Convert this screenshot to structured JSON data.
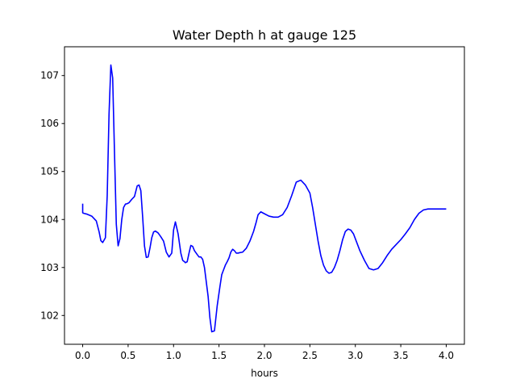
{
  "chart_data": {
    "type": "line",
    "title": "Water Depth h at gauge 125",
    "xlabel": "hours",
    "ylabel": "",
    "xlim": [
      -0.2,
      4.2
    ],
    "ylim": [
      101.4,
      107.6
    ],
    "x_ticks": [
      0.0,
      0.5,
      1.0,
      1.5,
      2.0,
      2.5,
      3.0,
      3.5,
      4.0
    ],
    "x_tick_labels": [
      "0.0",
      "0.5",
      "1.0",
      "1.5",
      "2.0",
      "2.5",
      "3.0",
      "3.5",
      "4.0"
    ],
    "y_ticks": [
      102,
      103,
      104,
      105,
      106,
      107
    ],
    "y_tick_labels": [
      "102",
      "103",
      "104",
      "105",
      "106",
      "107"
    ],
    "grid": false,
    "series": [
      {
        "color": "#0000ff",
        "x": [
          0.0,
          0.0,
          0.01,
          0.05,
          0.1,
          0.15,
          0.18,
          0.2,
          0.22,
          0.25,
          0.27,
          0.29,
          0.31,
          0.33,
          0.35,
          0.37,
          0.39,
          0.41,
          0.43,
          0.45,
          0.47,
          0.49,
          0.51,
          0.54,
          0.57,
          0.6,
          0.62,
          0.64,
          0.66,
          0.68,
          0.7,
          0.72,
          0.74,
          0.76,
          0.78,
          0.8,
          0.83,
          0.86,
          0.89,
          0.92,
          0.95,
          0.98,
          1.0,
          1.02,
          1.05,
          1.08,
          1.1,
          1.12,
          1.13,
          1.15,
          1.17,
          1.19,
          1.21,
          1.23,
          1.26,
          1.28,
          1.3,
          1.32,
          1.34,
          1.36,
          1.38,
          1.4,
          1.42,
          1.45,
          1.48,
          1.51,
          1.53,
          1.55,
          1.57,
          1.59,
          1.61,
          1.63,
          1.65,
          1.67,
          1.69,
          1.71,
          1.73,
          1.76,
          1.8,
          1.84,
          1.88,
          1.91,
          1.93,
          1.96,
          2.0,
          2.05,
          2.1,
          2.15,
          2.2,
          2.25,
          2.3,
          2.35,
          2.4,
          2.45,
          2.5,
          2.53,
          2.56,
          2.59,
          2.62,
          2.65,
          2.68,
          2.71,
          2.74,
          2.77,
          2.8,
          2.83,
          2.86,
          2.89,
          2.92,
          2.95,
          2.98,
          3.01,
          3.05,
          3.1,
          3.15,
          3.2,
          3.25,
          3.3,
          3.35,
          3.4,
          3.45,
          3.5,
          3.55,
          3.6,
          3.65,
          3.7,
          3.75,
          3.8,
          3.85,
          3.9,
          3.95,
          4.0
        ],
        "y": [
          104.33,
          104.14,
          104.13,
          104.11,
          104.07,
          103.97,
          103.75,
          103.56,
          103.52,
          103.62,
          104.5,
          106.2,
          107.22,
          106.95,
          105.4,
          103.9,
          103.45,
          103.6,
          104.0,
          104.25,
          104.32,
          104.33,
          104.35,
          104.42,
          104.48,
          104.7,
          104.72,
          104.6,
          104.05,
          103.45,
          103.21,
          103.22,
          103.4,
          103.62,
          103.74,
          103.76,
          103.72,
          103.64,
          103.55,
          103.32,
          103.22,
          103.3,
          103.78,
          103.95,
          103.7,
          103.3,
          103.15,
          103.12,
          103.1,
          103.12,
          103.3,
          103.46,
          103.44,
          103.35,
          103.27,
          103.22,
          103.22,
          103.17,
          103.0,
          102.7,
          102.4,
          101.95,
          101.66,
          101.68,
          102.2,
          102.6,
          102.85,
          102.95,
          103.05,
          103.12,
          103.2,
          103.32,
          103.38,
          103.35,
          103.3,
          103.3,
          103.31,
          103.32,
          103.4,
          103.55,
          103.75,
          103.95,
          104.1,
          104.16,
          104.12,
          104.07,
          104.05,
          104.05,
          104.1,
          104.25,
          104.5,
          104.78,
          104.82,
          104.72,
          104.55,
          104.25,
          103.9,
          103.55,
          103.25,
          103.05,
          102.93,
          102.88,
          102.9,
          103.0,
          103.15,
          103.35,
          103.58,
          103.75,
          103.8,
          103.78,
          103.7,
          103.55,
          103.35,
          103.15,
          102.98,
          102.95,
          102.98,
          103.1,
          103.25,
          103.38,
          103.48,
          103.58,
          103.7,
          103.83,
          104.0,
          104.13,
          104.2,
          104.22,
          104.22,
          104.22,
          104.22,
          104.22
        ]
      }
    ]
  }
}
